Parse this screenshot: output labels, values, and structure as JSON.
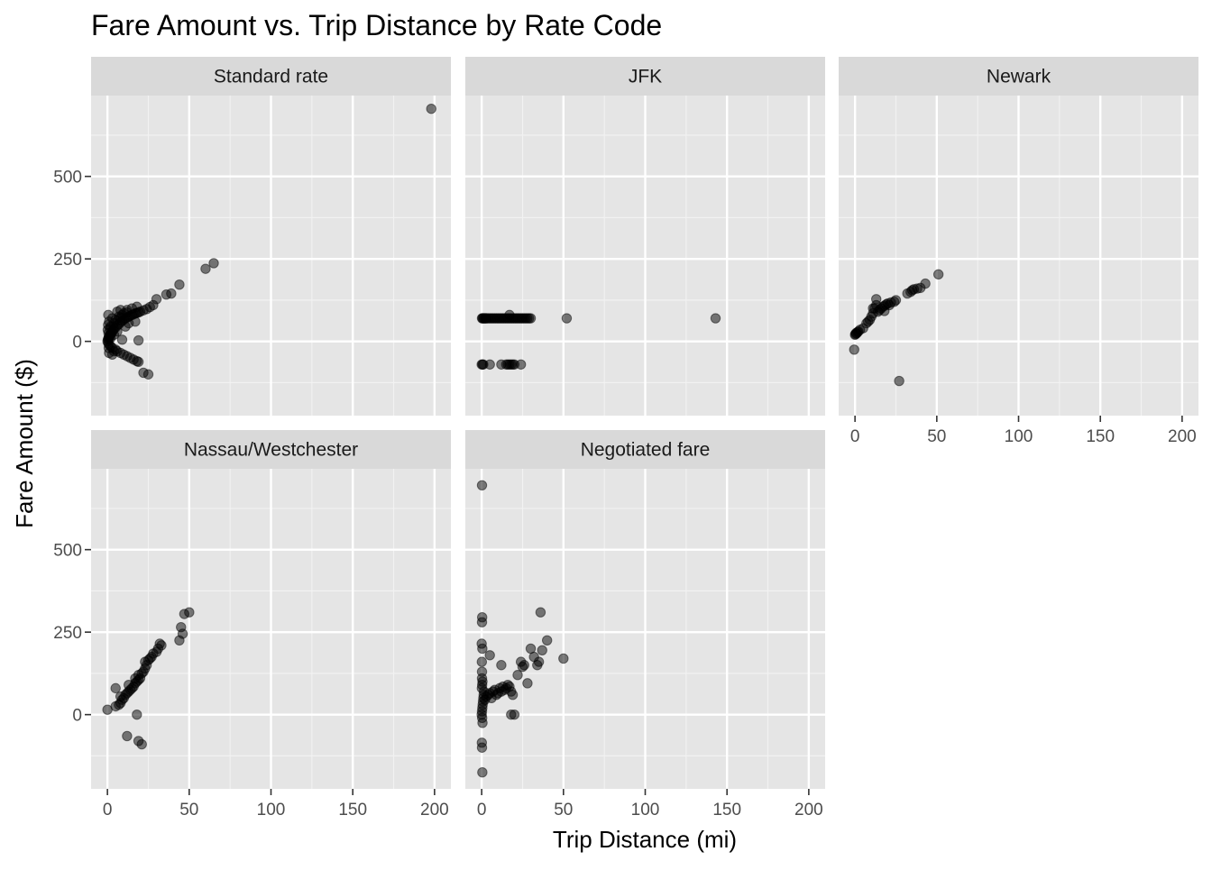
{
  "chart_data": {
    "type": "scatter",
    "title": "Fare Amount vs. Trip Distance by Rate Code",
    "xlabel": "Trip Distance (mi)",
    "ylabel": "Fare Amount ($)",
    "xlim": [
      -10,
      210
    ],
    "ylim": [
      -225,
      745
    ],
    "x_ticks": [
      0,
      50,
      100,
      150,
      200
    ],
    "x_tick_labels": [
      "0",
      "50",
      "100",
      "150",
      "200"
    ],
    "x_minor_ticks": [
      25,
      75,
      125,
      175
    ],
    "y_ticks": [
      0,
      250,
      500
    ],
    "y_tick_labels": [
      "0",
      "250",
      "500"
    ],
    "y_minor_ticks": [
      -125,
      125,
      375,
      625
    ],
    "grid": true,
    "point_color": "#000000",
    "point_alpha": 0.5,
    "panel_background": "#e5e5e5",
    "strip_background": "#d9d9d9",
    "facets": [
      {
        "label": "Standard rate",
        "points": [
          [
            0.3,
            5
          ],
          [
            0.5,
            8
          ],
          [
            0.8,
            12
          ],
          [
            1,
            15
          ],
          [
            1.2,
            10
          ],
          [
            1.5,
            20
          ],
          [
            2,
            22
          ],
          [
            2.5,
            25
          ],
          [
            3,
            30
          ],
          [
            3.5,
            35
          ],
          [
            4,
            38
          ],
          [
            5,
            42
          ],
          [
            6,
            48
          ],
          [
            7,
            52
          ],
          [
            8,
            58
          ],
          [
            9,
            62
          ],
          [
            10,
            66
          ],
          [
            11,
            70
          ],
          [
            12,
            72
          ],
          [
            13,
            75
          ],
          [
            14,
            78
          ],
          [
            15,
            80
          ],
          [
            16,
            82
          ],
          [
            17,
            85
          ],
          [
            18,
            86
          ],
          [
            19,
            88
          ],
          [
            20,
            90
          ],
          [
            22,
            94
          ],
          [
            24,
            98
          ],
          [
            26,
            104
          ],
          [
            28,
            110
          ],
          [
            2,
            45
          ],
          [
            4,
            55
          ],
          [
            6,
            62
          ],
          [
            8,
            72
          ],
          [
            10,
            85
          ],
          [
            12,
            95
          ],
          [
            0.5,
            80
          ],
          [
            1,
            60
          ],
          [
            3,
            70
          ],
          [
            5,
            65
          ],
          [
            7,
            75
          ],
          [
            9,
            80
          ],
          [
            15,
            100
          ],
          [
            18,
            105
          ],
          [
            0,
            0
          ],
          [
            0.5,
            -5
          ],
          [
            1,
            -10
          ],
          [
            2,
            -15
          ],
          [
            3,
            -20
          ],
          [
            5,
            -25
          ],
          [
            6,
            -30
          ],
          [
            8,
            -35
          ],
          [
            10,
            -40
          ],
          [
            12,
            -45
          ],
          [
            14,
            -50
          ],
          [
            16,
            -55
          ],
          [
            18,
            -60
          ],
          [
            19,
            -62
          ],
          [
            1,
            -35
          ],
          [
            3,
            -40
          ],
          [
            4,
            -30
          ],
          [
            0.2,
            35
          ],
          [
            0.4,
            50
          ],
          [
            0.6,
            25
          ],
          [
            0.8,
            -20
          ],
          [
            1.5,
            40
          ],
          [
            2,
            10
          ],
          [
            4,
            20
          ],
          [
            6,
            30
          ],
          [
            9,
            5
          ],
          [
            11,
            45
          ],
          [
            13,
            55
          ],
          [
            17,
            60
          ],
          [
            6,
            90
          ],
          [
            8,
            95
          ],
          [
            12,
            88
          ],
          [
            19,
            3
          ],
          [
            22,
            -95
          ],
          [
            25,
            -100
          ],
          [
            30,
            128
          ],
          [
            36,
            142
          ],
          [
            39,
            145
          ],
          [
            44,
            172
          ],
          [
            60,
            220
          ],
          [
            65,
            237
          ],
          [
            198,
            705
          ]
        ]
      },
      {
        "label": "JFK",
        "points": [
          [
            0.2,
            70
          ],
          [
            0.5,
            70
          ],
          [
            1,
            70
          ],
          [
            1.5,
            70
          ],
          [
            2,
            70
          ],
          [
            2.5,
            70
          ],
          [
            3,
            70
          ],
          [
            4,
            70
          ],
          [
            5,
            70
          ],
          [
            6,
            70
          ],
          [
            7,
            70
          ],
          [
            8,
            70
          ],
          [
            9,
            70
          ],
          [
            10,
            70
          ],
          [
            11,
            70
          ],
          [
            12,
            70
          ],
          [
            13,
            70
          ],
          [
            14,
            70
          ],
          [
            15,
            70
          ],
          [
            16,
            70
          ],
          [
            17,
            70
          ],
          [
            18,
            70
          ],
          [
            19,
            70
          ],
          [
            20,
            70
          ],
          [
            21,
            70
          ],
          [
            22,
            70
          ],
          [
            23,
            70
          ],
          [
            24,
            70
          ],
          [
            25,
            70
          ],
          [
            26,
            70
          ],
          [
            27,
            70
          ],
          [
            28,
            70
          ],
          [
            29,
            70
          ],
          [
            30,
            70
          ],
          [
            17,
            80
          ],
          [
            52,
            70
          ],
          [
            143,
            70
          ],
          [
            0,
            -70
          ],
          [
            0.5,
            -70
          ],
          [
            1,
            -70
          ],
          [
            5,
            -70
          ],
          [
            12,
            -70
          ],
          [
            15,
            -70
          ],
          [
            16,
            -70
          ],
          [
            17,
            -70
          ],
          [
            18,
            -70
          ],
          [
            19,
            -70
          ],
          [
            20,
            -70
          ],
          [
            24,
            -70
          ]
        ]
      },
      {
        "label": "Newark",
        "points": [
          [
            0,
            20
          ],
          [
            0.3,
            22
          ],
          [
            0.6,
            25
          ],
          [
            1,
            24
          ],
          [
            1.5,
            28
          ],
          [
            2,
            30
          ],
          [
            3,
            35
          ],
          [
            5,
            40
          ],
          [
            7,
            55
          ],
          [
            8,
            60
          ],
          [
            9,
            65
          ],
          [
            10,
            75
          ],
          [
            11,
            85
          ],
          [
            12,
            100
          ],
          [
            13,
            110
          ],
          [
            14,
            90
          ],
          [
            15,
            95
          ],
          [
            16,
            100
          ],
          [
            17,
            105
          ],
          [
            18,
            108
          ],
          [
            19,
            112
          ],
          [
            20,
            115
          ],
          [
            21,
            110
          ],
          [
            22,
            118
          ],
          [
            24,
            120
          ],
          [
            25,
            125
          ],
          [
            13,
            128
          ],
          [
            11,
            100
          ],
          [
            18,
            92
          ],
          [
            -0.5,
            -25
          ],
          [
            27,
            -120
          ],
          [
            32,
            145
          ],
          [
            34,
            150
          ],
          [
            35,
            155
          ],
          [
            36,
            158
          ],
          [
            38,
            160
          ],
          [
            40,
            162
          ],
          [
            43,
            175
          ],
          [
            51,
            203
          ]
        ]
      },
      {
        "label": "Nassau/Westchester",
        "points": [
          [
            0,
            15
          ],
          [
            5,
            25
          ],
          [
            5,
            80
          ],
          [
            7,
            30
          ],
          [
            8,
            35
          ],
          [
            8,
            55
          ],
          [
            9,
            45
          ],
          [
            10,
            50
          ],
          [
            11,
            60
          ],
          [
            12,
            65
          ],
          [
            13,
            70
          ],
          [
            13,
            90
          ],
          [
            14,
            75
          ],
          [
            15,
            80
          ],
          [
            16,
            85
          ],
          [
            17,
            95
          ],
          [
            17,
            110
          ],
          [
            18,
            100
          ],
          [
            19,
            105
          ],
          [
            19,
            120
          ],
          [
            20,
            110
          ],
          [
            21,
            125
          ],
          [
            22,
            130
          ],
          [
            23,
            140
          ],
          [
            23,
            160
          ],
          [
            24,
            150
          ],
          [
            25,
            165
          ],
          [
            26,
            170
          ],
          [
            27,
            175
          ],
          [
            28,
            185
          ],
          [
            30,
            190
          ],
          [
            31,
            200
          ],
          [
            32,
            215
          ],
          [
            33,
            210
          ],
          [
            12,
            -65
          ],
          [
            18,
            0
          ],
          [
            19,
            -80
          ],
          [
            21,
            -90
          ],
          [
            44,
            225
          ],
          [
            45,
            265
          ],
          [
            46,
            245
          ],
          [
            47,
            305
          ],
          [
            50,
            310
          ]
        ]
      },
      {
        "label": "Negotiated fare",
        "points": [
          [
            0,
            0
          ],
          [
            0.2,
            10
          ],
          [
            0.4,
            20
          ],
          [
            0.6,
            30
          ],
          [
            0.8,
            40
          ],
          [
            1,
            50
          ],
          [
            1.2,
            60
          ],
          [
            1.4,
            70
          ],
          [
            0.1,
            80
          ],
          [
            0.3,
            90
          ],
          [
            0.5,
            100
          ],
          [
            0.2,
            110
          ],
          [
            0.3,
            -10
          ],
          [
            0.5,
            -25
          ],
          [
            0.2,
            130
          ],
          [
            0.1,
            160
          ],
          [
            0.4,
            200
          ],
          [
            0,
            215
          ],
          [
            0.2,
            280
          ],
          [
            0.3,
            295
          ],
          [
            0.1,
            -85
          ],
          [
            0.2,
            -100
          ],
          [
            0.4,
            -175
          ],
          [
            0.2,
            695
          ],
          [
            2,
            45
          ],
          [
            3,
            55
          ],
          [
            4,
            60
          ],
          [
            5,
            65
          ],
          [
            6,
            50
          ],
          [
            7,
            70
          ],
          [
            8,
            75
          ],
          [
            9,
            60
          ],
          [
            10,
            65
          ],
          [
            11,
            80
          ],
          [
            12,
            70
          ],
          [
            13,
            85
          ],
          [
            14,
            75
          ],
          [
            15,
            80
          ],
          [
            16,
            90
          ],
          [
            17,
            85
          ],
          [
            18,
            70
          ],
          [
            19,
            60
          ],
          [
            20,
            0
          ],
          [
            5,
            180
          ],
          [
            12,
            150
          ],
          [
            18,
            0
          ],
          [
            22,
            120
          ],
          [
            24,
            160
          ],
          [
            25,
            145
          ],
          [
            26,
            150
          ],
          [
            28,
            95
          ],
          [
            30,
            200
          ],
          [
            32,
            175
          ],
          [
            34,
            150
          ],
          [
            35,
            160
          ],
          [
            36,
            310
          ],
          [
            37,
            195
          ],
          [
            40,
            225
          ],
          [
            50,
            170
          ]
        ]
      }
    ]
  }
}
